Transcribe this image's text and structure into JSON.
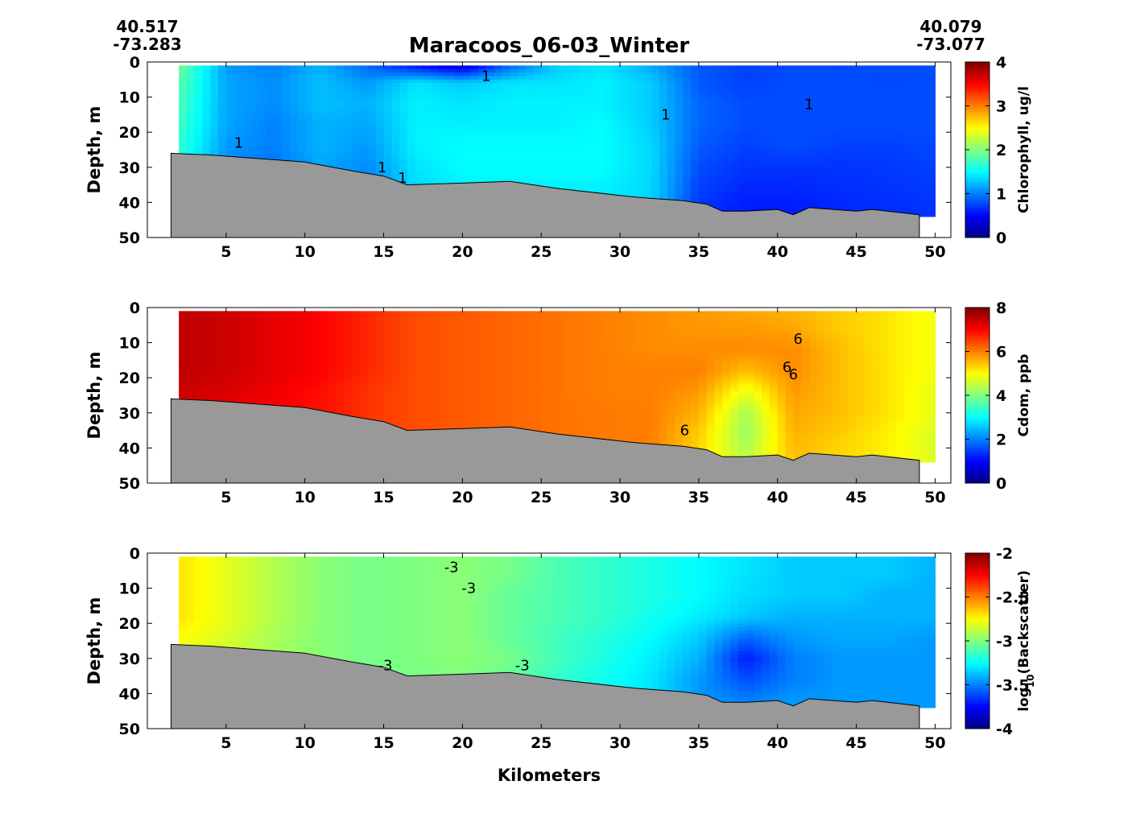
{
  "figure": {
    "title": "Maracoos_06-03_Winter",
    "start_lat": "40.517",
    "start_lon": "-73.283",
    "end_lat": "40.079",
    "end_lon": "-73.077",
    "xlabel": "Kilometers"
  },
  "chart_data": [
    {
      "type": "heatmap",
      "name": "chlorophyll",
      "ylabel": "Depth, m",
      "xlim": [
        0,
        51
      ],
      "ylim": [
        0,
        50
      ],
      "xticks": [
        5,
        10,
        15,
        20,
        25,
        30,
        35,
        40,
        45,
        50
      ],
      "yticks": [
        0,
        10,
        20,
        30,
        40,
        50
      ],
      "colorbar": {
        "label": "Chlorophyll, ug/l",
        "range": [
          0,
          4
        ],
        "ticks": [
          "0",
          "1",
          "2",
          "3",
          "4"
        ]
      },
      "colormap": "jet",
      "x": [
        2,
        5,
        8,
        11,
        14,
        17,
        20,
        23,
        26,
        29,
        32,
        35,
        38,
        41,
        44,
        47,
        50
      ],
      "depth": [
        1,
        6,
        12,
        18,
        24,
        30,
        36,
        42
      ],
      "grid": [
        [
          1.95,
          1.1,
          1.0,
          1.2,
          0.9,
          0.55,
          0.3,
          0.9,
          1.3,
          1.4,
          1.15,
          0.85,
          0.75,
          0.8,
          0.78,
          0.8,
          0.8
        ],
        [
          1.85,
          1.15,
          1.05,
          1.25,
          1.1,
          1.4,
          1.3,
          1.4,
          1.4,
          1.45,
          1.3,
          0.85,
          0.75,
          0.8,
          0.8,
          0.78,
          0.8
        ],
        [
          1.8,
          1.15,
          1.05,
          1.25,
          1.2,
          1.45,
          1.4,
          1.45,
          1.45,
          1.45,
          1.3,
          0.9,
          0.8,
          0.8,
          0.8,
          0.8,
          0.8
        ],
        [
          1.75,
          1.15,
          1.0,
          1.2,
          1.15,
          1.45,
          1.45,
          1.45,
          1.45,
          1.5,
          1.3,
          0.9,
          0.8,
          0.8,
          0.8,
          0.8,
          0.8
        ],
        [
          1.7,
          1.1,
          1.0,
          1.2,
          1.1,
          1.45,
          1.5,
          1.5,
          1.5,
          1.5,
          1.35,
          0.85,
          0.75,
          0.8,
          0.75,
          0.75,
          0.78
        ],
        [
          1.6,
          1.05,
          0.95,
          1.15,
          1.05,
          1.4,
          1.5,
          1.5,
          1.5,
          1.5,
          1.35,
          0.8,
          0.7,
          0.7,
          0.7,
          0.72,
          0.75
        ],
        [
          1.5,
          1.0,
          0.95,
          1.1,
          1.0,
          1.35,
          1.45,
          1.45,
          1.45,
          1.45,
          1.35,
          0.75,
          0.65,
          0.65,
          0.68,
          0.7,
          0.72
        ],
        [
          1.4,
          1.0,
          0.9,
          1.05,
          1.0,
          1.3,
          1.4,
          1.4,
          1.4,
          1.4,
          1.3,
          0.7,
          0.6,
          0.6,
          0.65,
          0.68,
          0.7
        ]
      ],
      "contour_labels": [
        {
          "x": 21.5,
          "y": 4,
          "text": "1"
        },
        {
          "x": 5.8,
          "y": 23,
          "text": "1"
        },
        {
          "x": 14.9,
          "y": 30,
          "text": "1"
        },
        {
          "x": 16.2,
          "y": 33,
          "text": "1"
        },
        {
          "x": 32.9,
          "y": 15,
          "text": "1"
        },
        {
          "x": 42,
          "y": 12,
          "text": "1"
        }
      ]
    },
    {
      "type": "heatmap",
      "name": "cdom",
      "ylabel": "Depth, m",
      "xlim": [
        0,
        51
      ],
      "ylim": [
        0,
        50
      ],
      "xticks": [
        5,
        10,
        15,
        20,
        25,
        30,
        35,
        40,
        45,
        50
      ],
      "yticks": [
        0,
        10,
        20,
        30,
        40,
        50
      ],
      "colorbar": {
        "label": "Cdom, ppb",
        "range": [
          0,
          8
        ],
        "ticks": [
          "0",
          "2",
          "4",
          "6",
          "8"
        ]
      },
      "colormap": "jet",
      "x": [
        2,
        5,
        8,
        11,
        14,
        17,
        20,
        23,
        26,
        29,
        32,
        35,
        38,
        41,
        44,
        47,
        50
      ],
      "depth": [
        1,
        6,
        12,
        18,
        24,
        30,
        36,
        42
      ],
      "grid": [
        [
          7.5,
          7.4,
          7.2,
          7.0,
          6.7,
          6.4,
          6.3,
          6.2,
          6.1,
          6.0,
          5.9,
          5.8,
          5.7,
          5.6,
          5.4,
          5.2,
          4.9
        ],
        [
          7.5,
          7.4,
          7.2,
          7.0,
          6.7,
          6.4,
          6.3,
          6.2,
          6.1,
          6.0,
          5.9,
          5.8,
          5.8,
          5.7,
          5.4,
          5.2,
          4.9
        ],
        [
          7.5,
          7.4,
          7.2,
          7.0,
          6.7,
          6.4,
          6.3,
          6.2,
          6.1,
          6.0,
          5.9,
          5.9,
          5.9,
          5.9,
          5.5,
          5.2,
          4.9
        ],
        [
          7.5,
          7.4,
          7.2,
          7.0,
          6.7,
          6.4,
          6.3,
          6.2,
          6.1,
          6.0,
          6.0,
          6.0,
          5.5,
          5.9,
          5.5,
          5.2,
          4.9
        ],
        [
          7.4,
          7.3,
          7.1,
          6.9,
          6.6,
          6.4,
          6.3,
          6.2,
          6.1,
          6.0,
          6.0,
          5.8,
          4.8,
          5.8,
          5.5,
          5.2,
          4.8
        ],
        [
          7.3,
          7.2,
          7.0,
          6.9,
          6.6,
          6.4,
          6.3,
          6.2,
          6.1,
          6.05,
          6.0,
          5.6,
          4.3,
          5.7,
          5.5,
          5.2,
          4.8
        ],
        [
          7.2,
          7.1,
          7.0,
          6.8,
          6.5,
          6.4,
          6.3,
          6.2,
          6.1,
          6.05,
          6.0,
          5.4,
          4.2,
          5.6,
          5.4,
          5.1,
          4.7
        ],
        [
          7.1,
          7.0,
          6.9,
          6.8,
          6.5,
          6.4,
          6.3,
          6.2,
          6.1,
          6.05,
          6.0,
          5.3,
          4.4,
          5.5,
          5.3,
          5.1,
          4.7
        ]
      ],
      "contour_labels": [
        {
          "x": 41.3,
          "y": 9,
          "text": "6"
        },
        {
          "x": 40.6,
          "y": 17,
          "text": "6"
        },
        {
          "x": 41,
          "y": 19,
          "text": "6"
        },
        {
          "x": 34.1,
          "y": 35,
          "text": "6"
        }
      ]
    },
    {
      "type": "heatmap",
      "name": "backscatter",
      "ylabel": "Depth, m",
      "xlim": [
        0,
        51
      ],
      "ylim": [
        0,
        50
      ],
      "xticks": [
        5,
        10,
        15,
        20,
        25,
        30,
        35,
        40,
        45,
        50
      ],
      "yticks": [
        0,
        10,
        20,
        30,
        40,
        50
      ],
      "colorbar": {
        "label": "log10(Backscatter)",
        "range": [
          -4,
          -2
        ],
        "ticks": [
          "-4",
          "-3.5",
          "-3",
          "-2.5",
          "-2"
        ]
      },
      "colormap": "jet",
      "x": [
        2,
        5,
        8,
        11,
        14,
        17,
        20,
        23,
        26,
        29,
        32,
        35,
        38,
        41,
        44,
        47,
        50
      ],
      "depth": [
        1,
        6,
        12,
        18,
        24,
        30,
        36,
        42
      ],
      "grid": [
        [
          -2.7,
          -2.8,
          -2.9,
          -2.98,
          -3.02,
          -3.0,
          -2.98,
          -3.02,
          -3.1,
          -3.15,
          -3.2,
          -3.25,
          -3.3,
          -3.35,
          -3.35,
          -3.35,
          -3.4
        ],
        [
          -2.7,
          -2.8,
          -2.9,
          -2.98,
          -3.02,
          -3.0,
          -2.98,
          -3.02,
          -3.1,
          -3.15,
          -3.2,
          -3.25,
          -3.3,
          -3.35,
          -3.35,
          -3.35,
          -3.4
        ],
        [
          -2.7,
          -2.8,
          -2.9,
          -2.98,
          -3.02,
          -3.0,
          -2.98,
          -3.05,
          -3.1,
          -3.15,
          -3.2,
          -3.25,
          -3.32,
          -3.35,
          -3.35,
          -3.4,
          -3.4
        ],
        [
          -2.7,
          -2.8,
          -2.9,
          -2.98,
          -3.02,
          -3.0,
          -2.98,
          -3.05,
          -3.1,
          -3.15,
          -3.22,
          -3.28,
          -3.35,
          -3.4,
          -3.4,
          -3.4,
          -3.4
        ],
        [
          -2.75,
          -2.82,
          -2.92,
          -2.98,
          -3.02,
          -3.0,
          -2.98,
          -3.05,
          -3.12,
          -3.18,
          -3.25,
          -3.35,
          -3.55,
          -3.45,
          -3.42,
          -3.42,
          -3.45
        ],
        [
          -2.8,
          -2.85,
          -2.92,
          -2.98,
          -3.02,
          -3.0,
          -2.98,
          -3.02,
          -3.12,
          -3.2,
          -3.28,
          -3.4,
          -3.7,
          -3.5,
          -3.45,
          -3.45,
          -3.45
        ],
        [
          -2.8,
          -2.85,
          -2.92,
          -2.98,
          -3.02,
          -3.02,
          -3.0,
          -3.05,
          -3.15,
          -3.22,
          -3.3,
          -3.45,
          -3.6,
          -3.5,
          -3.45,
          -3.45,
          -3.45
        ],
        [
          -2.8,
          -2.85,
          -2.92,
          -2.98,
          -3.02,
          -3.02,
          -3.0,
          -3.05,
          -3.15,
          -3.22,
          -3.3,
          -3.45,
          -3.5,
          -3.45,
          -3.45,
          -3.45,
          -3.45
        ]
      ],
      "contour_labels": [
        {
          "x": 19.3,
          "y": 4,
          "text": "-3"
        },
        {
          "x": 20.4,
          "y": 10,
          "text": "-3"
        },
        {
          "x": 15.1,
          "y": 32,
          "text": "-3"
        },
        {
          "x": 23.8,
          "y": 32,
          "text": "-3"
        }
      ]
    }
  ],
  "bathymetry": {
    "x": [
      1.5,
      4,
      7,
      10,
      13,
      15,
      16.5,
      20,
      23,
      26,
      31,
      34,
      35.5,
      36.5,
      38,
      40,
      41,
      42,
      45,
      46,
      49
    ],
    "depth": [
      26,
      26.5,
      27.5,
      28.5,
      31,
      32.5,
      35,
      34.5,
      34,
      36,
      38.5,
      39.5,
      40.5,
      42.5,
      42.5,
      42,
      43.5,
      41.5,
      42.5,
      42,
      43.5
    ]
  },
  "ocean_sections": [
    {
      "x": [
        2,
        50
      ],
      "top": 1
    }
  ]
}
